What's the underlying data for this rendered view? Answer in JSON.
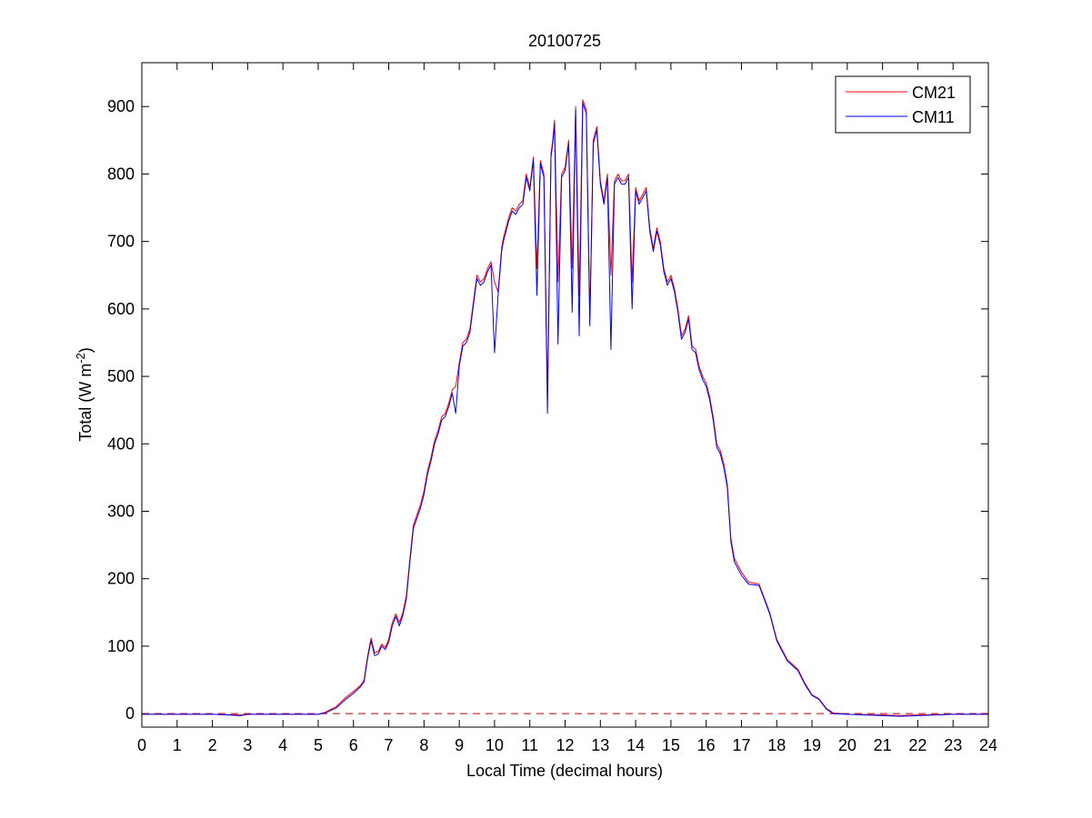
{
  "chart_data": {
    "type": "line",
    "title": "20100725",
    "xlabel": "Local Time (decimal hours)",
    "ylabel": {
      "prefix": "Total (W m",
      "superscript": "-2",
      "suffix": ")"
    },
    "xlim": [
      0,
      24
    ],
    "ylim": [
      -20,
      965
    ],
    "xticks": [
      0,
      1,
      2,
      3,
      4,
      5,
      6,
      7,
      8,
      9,
      10,
      11,
      12,
      13,
      14,
      15,
      16,
      17,
      18,
      19,
      20,
      21,
      22,
      23,
      24
    ],
    "yticks": [
      0,
      100,
      200,
      300,
      400,
      500,
      600,
      700,
      800,
      900
    ],
    "grid": false,
    "legend_position": "top-right",
    "reference_line": {
      "y": 0,
      "style": "dashed",
      "color": "#c00000"
    },
    "series": [
      {
        "name": "CM21",
        "color": "#ff0000",
        "x": [
          0,
          1,
          2,
          2.8,
          3,
          4,
          5,
          5.2,
          5.5,
          5.8,
          6.0,
          6.2,
          6.3,
          6.4,
          6.5,
          6.6,
          6.7,
          6.8,
          6.9,
          7.0,
          7.1,
          7.2,
          7.3,
          7.4,
          7.5,
          7.6,
          7.7,
          7.8,
          7.9,
          8.0,
          8.1,
          8.2,
          8.3,
          8.4,
          8.5,
          8.6,
          8.7,
          8.8,
          8.9,
          9.0,
          9.1,
          9.2,
          9.3,
          9.4,
          9.5,
          9.6,
          9.7,
          9.8,
          9.9,
          10.0,
          10.1,
          10.2,
          10.25,
          10.3,
          10.4,
          10.5,
          10.6,
          10.7,
          10.8,
          10.9,
          11.0,
          11.1,
          11.2,
          11.3,
          11.4,
          11.5,
          11.6,
          11.65,
          11.7,
          11.8,
          11.9,
          12.0,
          12.1,
          12.2,
          12.3,
          12.4,
          12.5,
          12.6,
          12.7,
          12.8,
          12.9,
          13.0,
          13.1,
          13.2,
          13.3,
          13.4,
          13.5,
          13.6,
          13.7,
          13.8,
          13.9,
          14.0,
          14.1,
          14.2,
          14.3,
          14.4,
          14.5,
          14.6,
          14.7,
          14.8,
          14.9,
          15.0,
          15.1,
          15.2,
          15.3,
          15.4,
          15.5,
          15.6,
          15.7,
          15.8,
          15.9,
          16.0,
          16.1,
          16.2,
          16.3,
          16.4,
          16.5,
          16.6,
          16.7,
          16.8,
          17.0,
          17.2,
          17.5,
          17.8,
          18.0,
          18.3,
          18.6,
          18.8,
          19.0,
          19.2,
          19.4,
          19.6,
          20,
          21,
          21.5,
          22,
          23,
          24
        ],
        "y": [
          -1,
          -1,
          -1,
          -2,
          -1,
          -1,
          -1,
          2,
          10,
          25,
          33,
          42,
          50,
          85,
          112,
          90,
          92,
          103,
          98,
          110,
          135,
          148,
          135,
          150,
          175,
          230,
          280,
          295,
          310,
          330,
          360,
          380,
          405,
          420,
          440,
          445,
          460,
          480,
          485,
          520,
          550,
          555,
          570,
          610,
          650,
          640,
          645,
          660,
          670,
          640,
          625,
          690,
          705,
          715,
          735,
          750,
          745,
          755,
          760,
          800,
          780,
          825,
          660,
          820,
          800,
          470,
          830,
          850,
          880,
          640,
          800,
          810,
          850,
          660,
          900,
          620,
          910,
          895,
          590,
          850,
          870,
          790,
          760,
          800,
          650,
          790,
          800,
          790,
          790,
          800,
          640,
          780,
          760,
          770,
          780,
          720,
          690,
          720,
          700,
          660,
          640,
          650,
          630,
          600,
          560,
          570,
          590,
          545,
          540,
          515,
          500,
          490,
          470,
          440,
          400,
          390,
          370,
          340,
          260,
          230,
          210,
          195,
          192,
          150,
          110,
          80,
          66,
          45,
          28,
          22,
          8,
          1,
          -1,
          -2,
          -3,
          -2,
          -1,
          -1
        ]
      },
      {
        "name": "CM11",
        "color": "#0000ff",
        "x": [
          0,
          1,
          2,
          2.8,
          3,
          4,
          5,
          5.2,
          5.5,
          5.8,
          6.0,
          6.2,
          6.3,
          6.4,
          6.5,
          6.6,
          6.7,
          6.8,
          6.9,
          7.0,
          7.1,
          7.2,
          7.3,
          7.4,
          7.5,
          7.6,
          7.7,
          7.8,
          7.9,
          8.0,
          8.1,
          8.2,
          8.3,
          8.4,
          8.5,
          8.6,
          8.7,
          8.8,
          8.9,
          9.0,
          9.1,
          9.2,
          9.3,
          9.4,
          9.5,
          9.6,
          9.7,
          9.8,
          9.9,
          10.0,
          10.1,
          10.2,
          10.25,
          10.3,
          10.4,
          10.5,
          10.6,
          10.7,
          10.8,
          10.9,
          11.0,
          11.1,
          11.2,
          11.3,
          11.4,
          11.5,
          11.6,
          11.65,
          11.7,
          11.8,
          11.9,
          12.0,
          12.1,
          12.2,
          12.3,
          12.4,
          12.5,
          12.6,
          12.7,
          12.8,
          12.9,
          13.0,
          13.1,
          13.2,
          13.3,
          13.4,
          13.5,
          13.6,
          13.7,
          13.8,
          13.9,
          14.0,
          14.1,
          14.2,
          14.3,
          14.4,
          14.5,
          14.6,
          14.7,
          14.8,
          14.9,
          15.0,
          15.1,
          15.2,
          15.3,
          15.4,
          15.5,
          15.6,
          15.7,
          15.8,
          15.9,
          16.0,
          16.1,
          16.2,
          16.3,
          16.4,
          16.5,
          16.6,
          16.7,
          16.8,
          17.0,
          17.2,
          17.5,
          17.8,
          18.0,
          18.3,
          18.6,
          18.8,
          19.0,
          19.2,
          19.4,
          19.6,
          20,
          21,
          21.5,
          22,
          23,
          24
        ],
        "y": [
          -1,
          -1,
          -1,
          -3,
          -1,
          -1,
          -1,
          1,
          8,
          22,
          30,
          40,
          47,
          82,
          108,
          86,
          88,
          100,
          95,
          106,
          130,
          144,
          130,
          146,
          170,
          225,
          275,
          290,
          305,
          325,
          355,
          375,
          400,
          415,
          435,
          440,
          455,
          475,
          445,
          515,
          545,
          550,
          565,
          605,
          645,
          635,
          640,
          655,
          665,
          535,
          620,
          685,
          700,
          710,
          730,
          745,
          740,
          750,
          755,
          795,
          775,
          820,
          620,
          815,
          795,
          445,
          825,
          845,
          875,
          548,
          795,
          805,
          845,
          595,
          895,
          560,
          905,
          890,
          575,
          845,
          865,
          785,
          755,
          795,
          540,
          785,
          795,
          785,
          785,
          795,
          600,
          775,
          755,
          765,
          775,
          715,
          685,
          715,
          695,
          655,
          635,
          645,
          625,
          595,
          555,
          565,
          585,
          540,
          535,
          510,
          495,
          485,
          465,
          435,
          395,
          385,
          365,
          335,
          255,
          225,
          205,
          192,
          190,
          148,
          108,
          78,
          64,
          43,
          27,
          21,
          7,
          0,
          -1,
          -3,
          -4,
          -3,
          -1,
          -1
        ]
      }
    ]
  }
}
